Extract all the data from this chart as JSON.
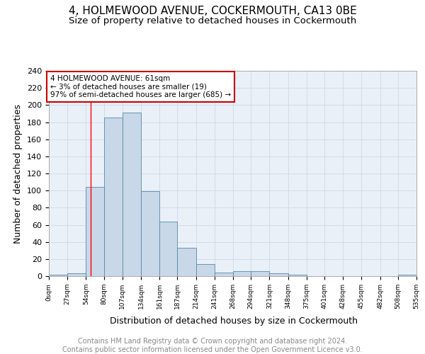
{
  "title": "4, HOLMEWOOD AVENUE, COCKERMOUTH, CA13 0BE",
  "subtitle": "Size of property relative to detached houses in Cockermouth",
  "xlabel": "Distribution of detached houses by size in Cockermouth",
  "ylabel": "Number of detached properties",
  "bin_edges": [
    0,
    27,
    54,
    80,
    107,
    134,
    161,
    187,
    214,
    241,
    268,
    294,
    321,
    348,
    375,
    401,
    428,
    455,
    482,
    508,
    535
  ],
  "bin_heights": [
    2,
    3,
    104,
    185,
    191,
    99,
    64,
    33,
    14,
    4,
    6,
    6,
    3,
    2,
    0,
    0,
    0,
    0,
    0,
    2
  ],
  "bar_color": "#c8d8e8",
  "bar_edge_color": "#5588aa",
  "property_size": 61,
  "red_line_x": 61,
  "annotation_text": "4 HOLMEWOOD AVENUE: 61sqm\n← 3% of detached houses are smaller (19)\n97% of semi-detached houses are larger (685) →",
  "annotation_box_color": "#ffffff",
  "annotation_box_edge": "#cc0000",
  "tick_labels": [
    "0sqm",
    "27sqm",
    "54sqm",
    "80sqm",
    "107sqm",
    "134sqm",
    "161sqm",
    "187sqm",
    "214sqm",
    "241sqm",
    "268sqm",
    "294sqm",
    "321sqm",
    "348sqm",
    "375sqm",
    "401sqm",
    "428sqm",
    "455sqm",
    "482sqm",
    "508sqm",
    "535sqm"
  ],
  "ylim": [
    0,
    240
  ],
  "yticks": [
    0,
    20,
    40,
    60,
    80,
    100,
    120,
    140,
    160,
    180,
    200,
    220,
    240
  ],
  "grid_color": "#d0d8e8",
  "background_color": "#eaf0f8",
  "footer_text": "Contains HM Land Registry data © Crown copyright and database right 2024.\nContains public sector information licensed under the Open Government Licence v3.0.",
  "title_fontsize": 11,
  "subtitle_fontsize": 9.5,
  "xlabel_fontsize": 9,
  "ylabel_fontsize": 9,
  "footer_fontsize": 7
}
